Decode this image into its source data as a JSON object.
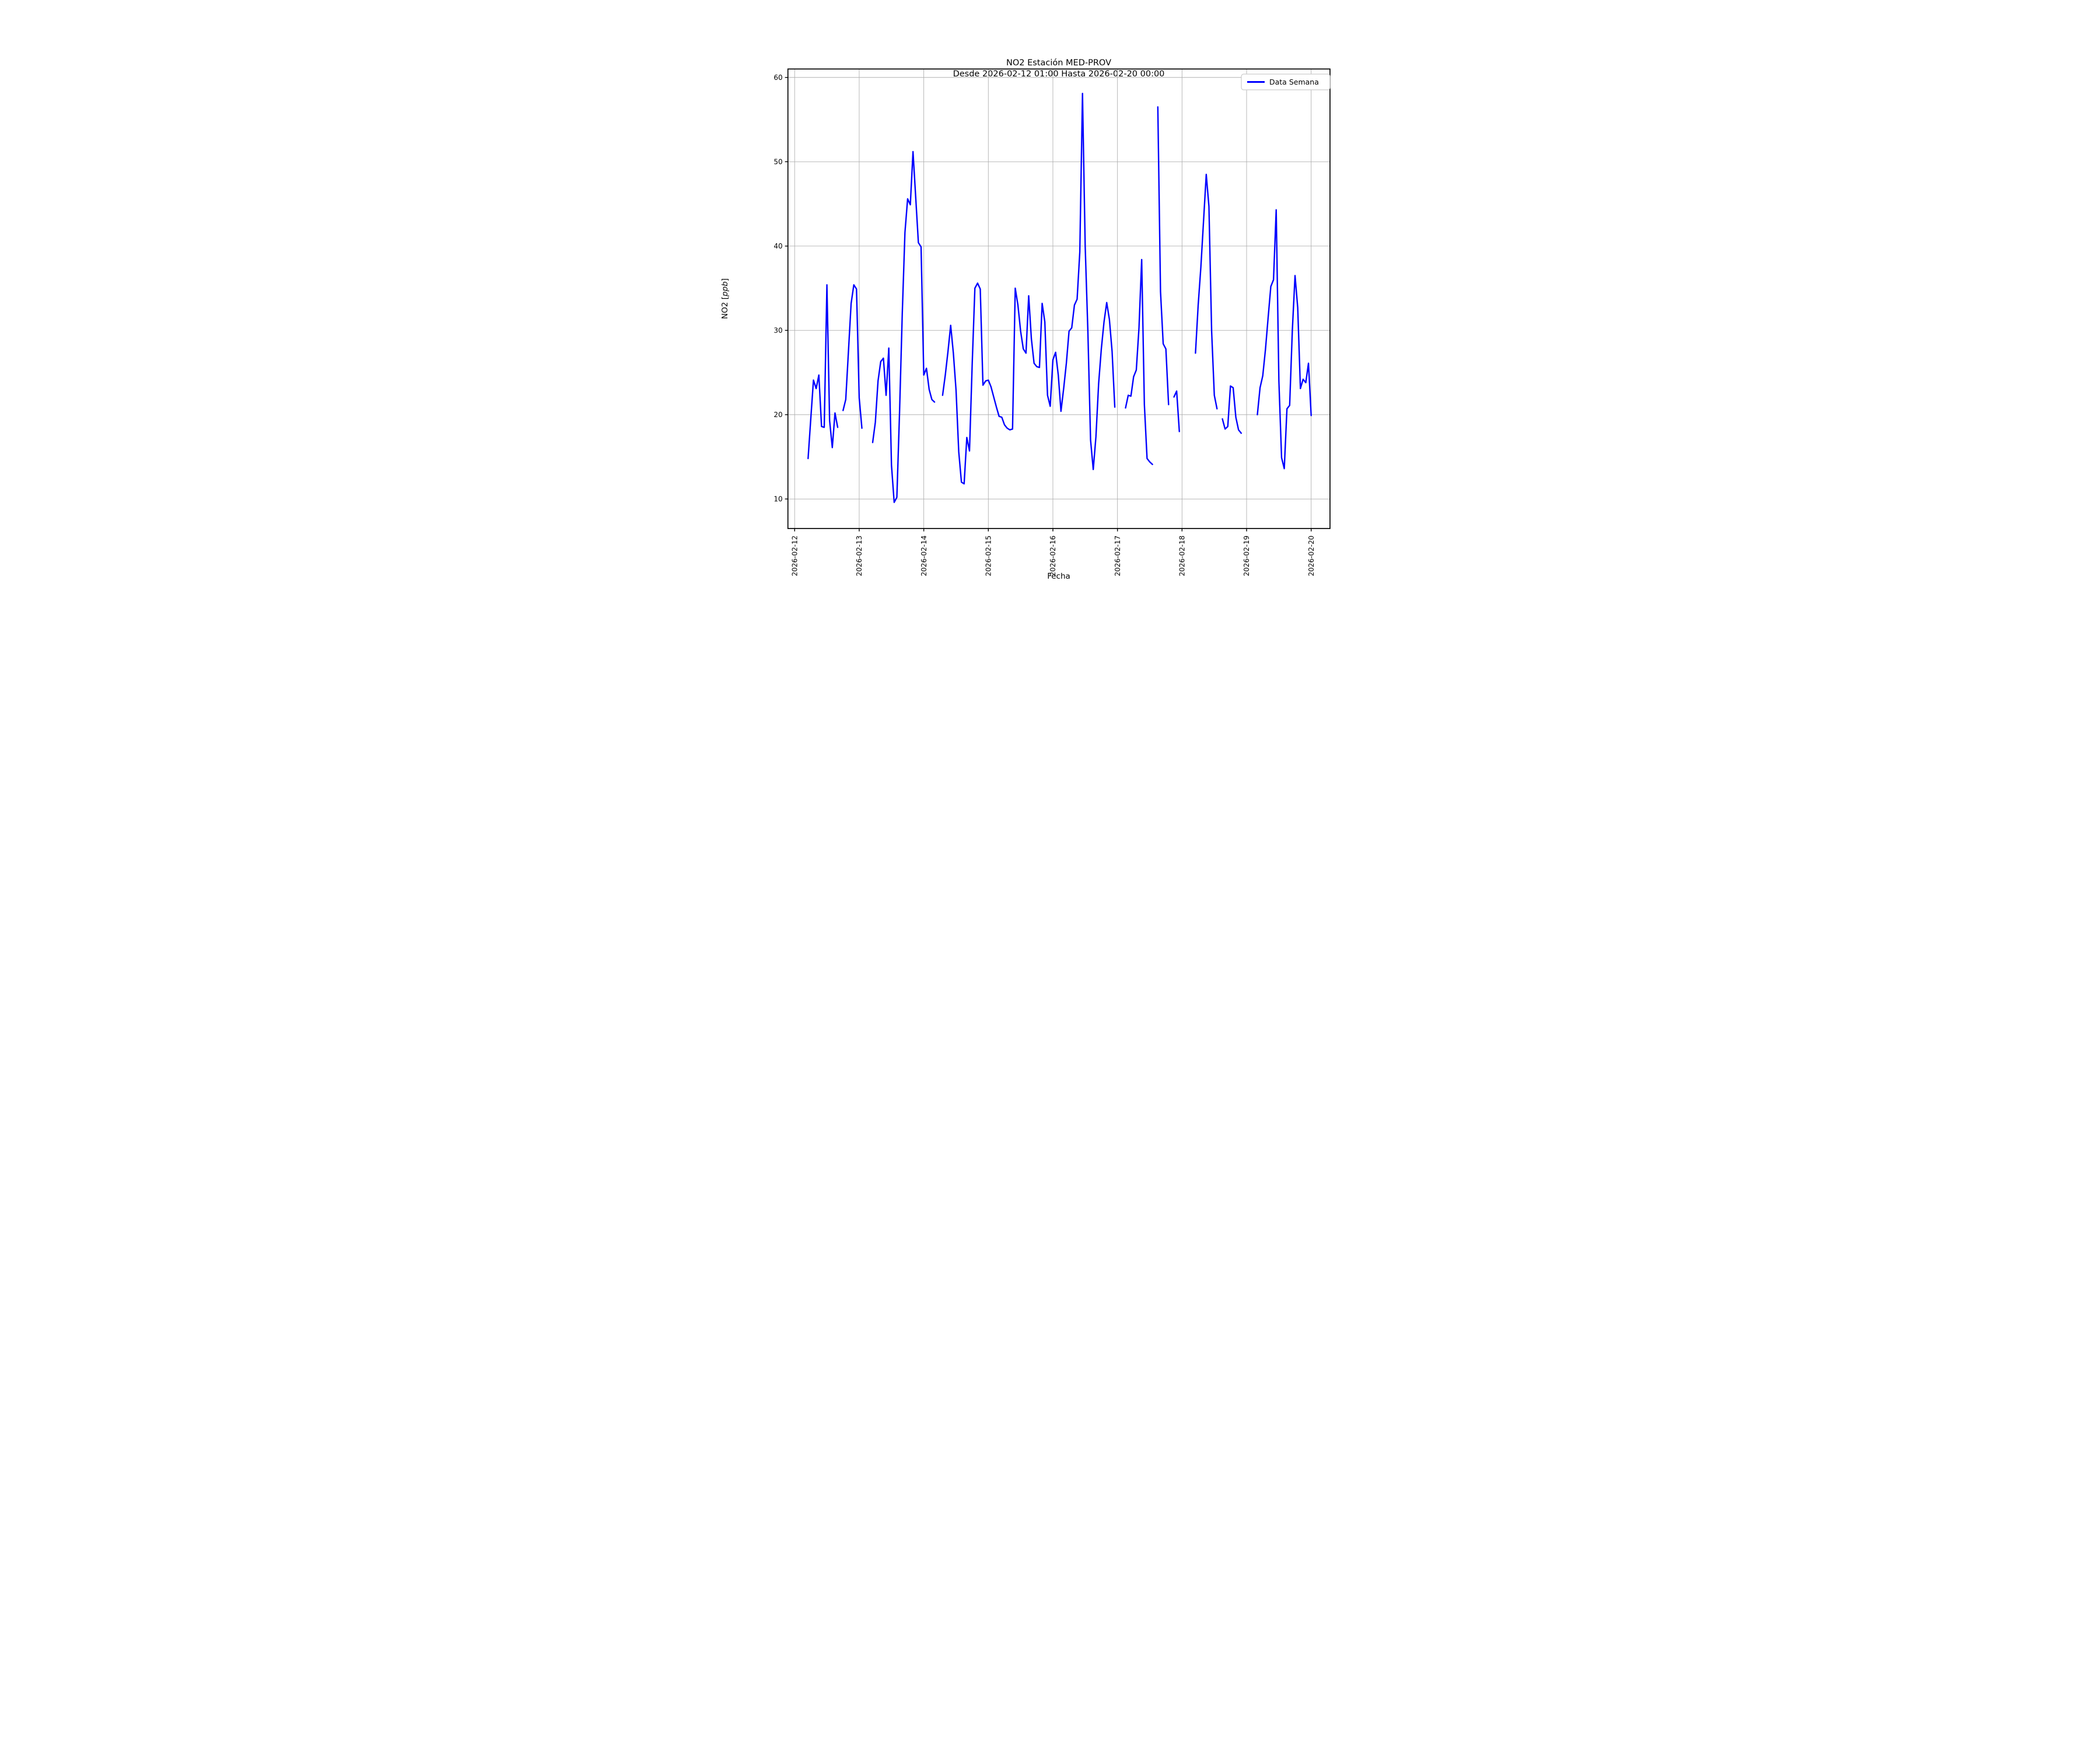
{
  "chart_data": {
    "type": "line",
    "title": "NO2 Estación MED-PROV",
    "subtitle": "Desde 2026-02-12 01:00 Hasta 2026-02-20 00:00",
    "xlabel": "Fecha",
    "ylabel": "NO2 [ppb]",
    "legend": {
      "label": "Data Semana",
      "position": "upper right"
    },
    "grid": true,
    "colors": {
      "line": "#0000ff",
      "grid": "#b0b0b0",
      "spine": "#000000",
      "background": "#ffffff",
      "legend_border": "#cccccc"
    },
    "ylim": [
      6.5,
      61.0
    ],
    "yticks": [
      10,
      20,
      30,
      40,
      50,
      60
    ],
    "xticks": [
      "2026-02-12",
      "2026-02-13",
      "2026-02-14",
      "2026-02-15",
      "2026-02-16",
      "2026-02-17",
      "2026-02-18",
      "2026-02-19",
      "2026-02-20"
    ],
    "x_start_hours": -2.5,
    "x_end_hours": 199.0,
    "series_start": "2026-02-12 01:00",
    "interval_hours": 1,
    "series_name": "Data Semana",
    "values": [
      null,
      null,
      null,
      null,
      14.8,
      19.5,
      24.1,
      23.1,
      24.7,
      18.6,
      18.5,
      35.4,
      19.3,
      16.1,
      20.2,
      18.5,
      null,
      20.5,
      21.8,
      27.5,
      33.2,
      35.4,
      34.9,
      22.0,
      18.4,
      null,
      null,
      null,
      16.7,
      19.1,
      24.0,
      26.3,
      26.7,
      22.3,
      27.9,
      14.0,
      9.6,
      10.2,
      20.3,
      31.9,
      41.6,
      45.6,
      44.9,
      51.2,
      45.8,
      40.4,
      39.9,
      24.7,
      25.5,
      23.0,
      21.8,
      21.5,
      null,
      null,
      22.3,
      24.7,
      27.5,
      30.6,
      27.3,
      22.9,
      15.6,
      12.0,
      11.8,
      17.3,
      15.7,
      26.0,
      35.0,
      35.6,
      34.9,
      23.5,
      24.0,
      24.1,
      23.3,
      22.1,
      20.9,
      19.8,
      19.7,
      18.8,
      18.4,
      18.2,
      18.3,
      35.0,
      33.0,
      29.9,
      27.8,
      27.3,
      34.1,
      29.0,
      26.1,
      25.7,
      25.6,
      33.2,
      31.0,
      22.3,
      21.0,
      26.5,
      27.4,
      24.7,
      20.4,
      23.1,
      26.1,
      29.9,
      30.3,
      33.0,
      33.7,
      39.3,
      58.1,
      40.0,
      29.9,
      17.0,
      13.5,
      17.4,
      23.7,
      27.8,
      31.0,
      33.3,
      31.3,
      27.5,
      20.9,
      null,
      null,
      null,
      20.8,
      22.3,
      22.2,
      24.5,
      25.3,
      30.3,
      38.4,
      21.2,
      14.8,
      14.4,
      14.1,
      null,
      56.5,
      34.6,
      28.4,
      27.8,
      21.2,
      null,
      22.1,
      22.8,
      18.0,
      null,
      null,
      null,
      null,
      null,
      27.3,
      33.0,
      37.5,
      43.0,
      48.5,
      44.7,
      29.9,
      22.3,
      20.7,
      null,
      19.5,
      18.3,
      18.6,
      23.4,
      23.2,
      19.7,
      18.2,
      17.8,
      null,
      null,
      null,
      null,
      null,
      20.0,
      23.2,
      24.6,
      27.7,
      31.5,
      35.2,
      36.0,
      44.3,
      24.0,
      14.9,
      13.6,
      20.7,
      21.1,
      30.0,
      36.5,
      32.7,
      23.1,
      24.2,
      23.8,
      26.1,
      19.9
    ]
  }
}
